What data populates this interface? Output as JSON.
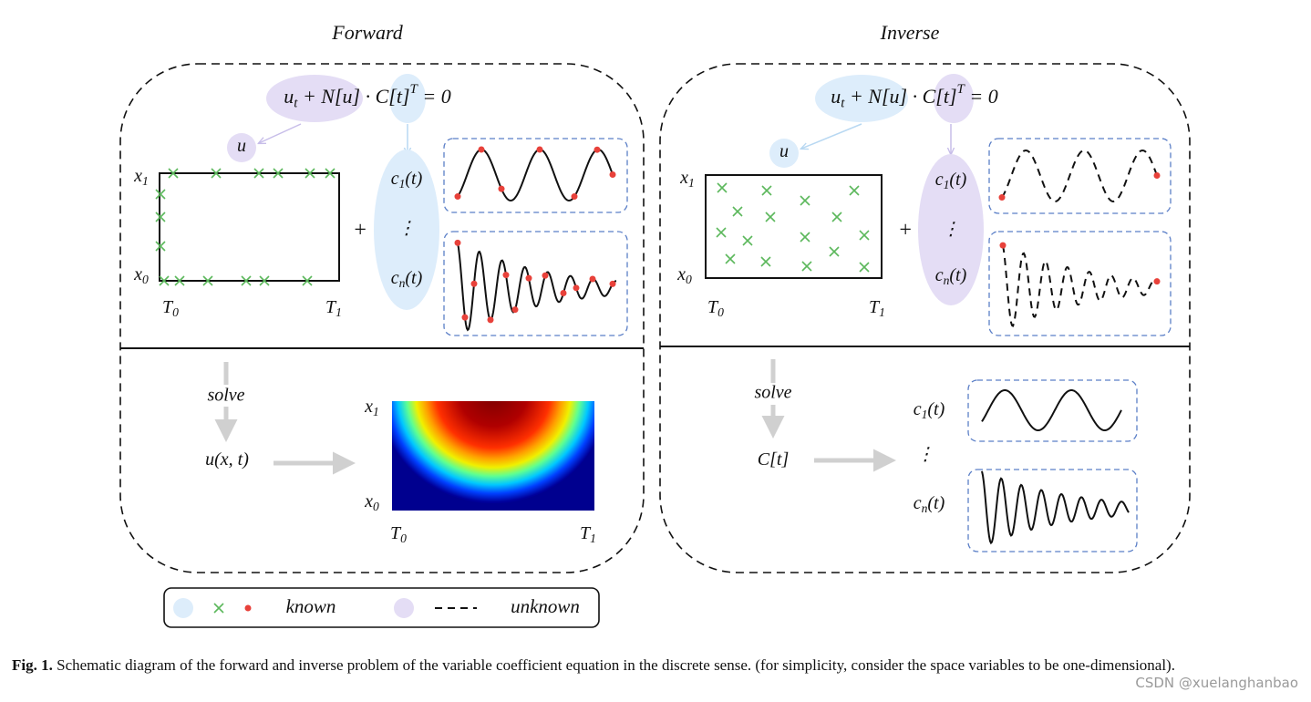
{
  "forward": {
    "title": "Forward",
    "equation": [
      {
        "text": "u"
      },
      {
        "sub": "t"
      },
      {
        "text": " + N[u] · C[t]"
      },
      {
        "sup": "T"
      },
      {
        "text": " = 0"
      }
    ],
    "field": [
      {
        "text": "u"
      }
    ],
    "x_top": [
      {
        "text": "x"
      },
      {
        "sub": "1"
      }
    ],
    "x_bottom": [
      {
        "text": "x"
      },
      {
        "sub": "0"
      }
    ],
    "t_left": [
      {
        "text": "T"
      },
      {
        "sub": "0"
      }
    ],
    "t_right": [
      {
        "text": "T"
      },
      {
        "sub": "1"
      }
    ],
    "plus": "+",
    "coef_first": [
      {
        "text": "c"
      },
      {
        "sub": "1"
      },
      {
        "text": "(t)"
      }
    ],
    "vdots": "⋮",
    "coef_last": [
      {
        "text": "c"
      },
      {
        "sub": "n"
      },
      {
        "text": "(t)"
      }
    ],
    "step": "solve",
    "result": [
      {
        "text": "u(x, t)"
      }
    ],
    "heat_x_top": [
      {
        "text": "x"
      },
      {
        "sub": "1"
      }
    ],
    "heat_x_bottom": [
      {
        "text": "x"
      },
      {
        "sub": "0"
      }
    ],
    "heat_t_left": [
      {
        "text": "T"
      },
      {
        "sub": "0"
      }
    ],
    "heat_t_right": [
      {
        "text": "T"
      },
      {
        "sub": "1"
      }
    ]
  },
  "inverse": {
    "title": "Inverse",
    "equation": [
      {
        "text": "u"
      },
      {
        "sub": "t"
      },
      {
        "text": " + N[u] · C[t]"
      },
      {
        "sup": "T"
      },
      {
        "text": " = 0"
      }
    ],
    "field": [
      {
        "text": "u"
      }
    ],
    "x_top": [
      {
        "text": "x"
      },
      {
        "sub": "1"
      }
    ],
    "x_bottom": [
      {
        "text": "x"
      },
      {
        "sub": "0"
      }
    ],
    "t_left": [
      {
        "text": "T"
      },
      {
        "sub": "0"
      }
    ],
    "t_right": [
      {
        "text": "T"
      },
      {
        "sub": "1"
      }
    ],
    "plus": "+",
    "coef_first": [
      {
        "text": "c"
      },
      {
        "sub": "1"
      },
      {
        "text": "(t)"
      }
    ],
    "vdots": "⋮",
    "coef_last": [
      {
        "text": "c"
      },
      {
        "sub": "n"
      },
      {
        "text": "(t)"
      }
    ],
    "step": "solve",
    "result": [
      {
        "text": "C[t]"
      }
    ],
    "out_first": [
      {
        "text": "c"
      },
      {
        "sub": "1"
      },
      {
        "text": "(t)"
      }
    ],
    "out_vdots": "⋮",
    "out_last": [
      {
        "text": "c"
      },
      {
        "sub": "n"
      },
      {
        "text": "(t)"
      }
    ]
  },
  "legend": {
    "known": "known",
    "unknown": "unknown"
  },
  "caption": {
    "label": "Fig. 1.",
    "text": " Schematic diagram of the forward and inverse problem of the variable coefficient equation in the discrete sense. (for simplicity, consider the space variables to be one-dimensional)."
  },
  "watermark": "CSDN @xuelanghanbao"
}
